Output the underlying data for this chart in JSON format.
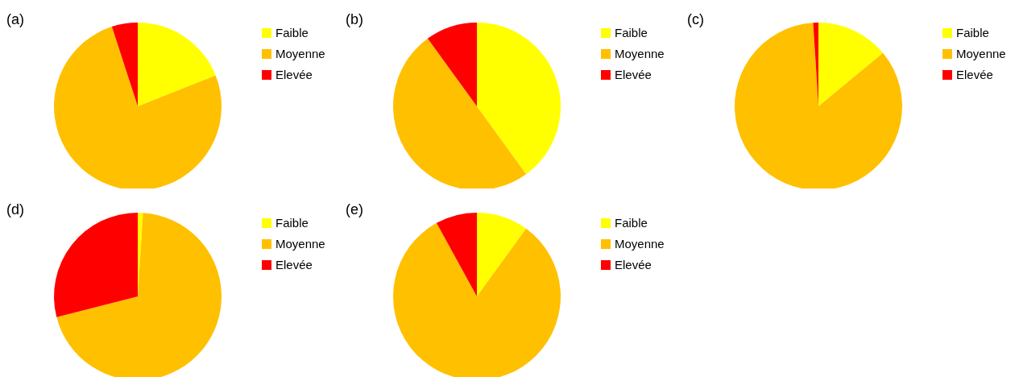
{
  "chart_data": [
    {
      "type": "pie",
      "title": "(a)",
      "categories": [
        "Faible",
        "Moyenne",
        "Elevée"
      ],
      "values": [
        19,
        76,
        5
      ],
      "colors": [
        "#ffff00",
        "#ffc000",
        "#ff0000"
      ],
      "legend": "right"
    },
    {
      "type": "pie",
      "title": "(b)",
      "categories": [
        "Faible",
        "Moyenne",
        "Elevée"
      ],
      "values": [
        40,
        50,
        10
      ],
      "colors": [
        "#ffff00",
        "#ffc000",
        "#ff0000"
      ],
      "legend": "right"
    },
    {
      "type": "pie",
      "title": "(c)",
      "categories": [
        "Faible",
        "Moyenne",
        "Elevée"
      ],
      "values": [
        14,
        85,
        1
      ],
      "colors": [
        "#ffff00",
        "#ffc000",
        "#ff0000"
      ],
      "legend": "right"
    },
    {
      "type": "pie",
      "title": "(d)",
      "categories": [
        "Faible",
        "Moyenne",
        "Elevée"
      ],
      "values": [
        1,
        70,
        29
      ],
      "colors": [
        "#ffff00",
        "#ffc000",
        "#ff0000"
      ],
      "legend": "right"
    },
    {
      "type": "pie",
      "title": "(e)",
      "categories": [
        "Faible",
        "Moyenne",
        "Elevée"
      ],
      "values": [
        10,
        82,
        8
      ],
      "colors": [
        "#ffff00",
        "#ffc000",
        "#ff0000"
      ],
      "legend": "right"
    }
  ]
}
